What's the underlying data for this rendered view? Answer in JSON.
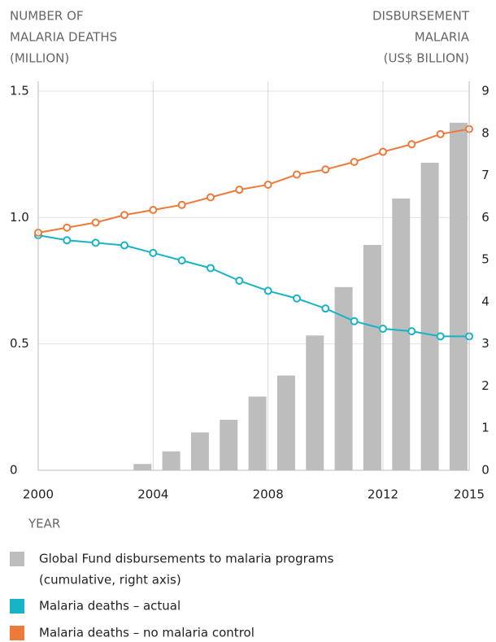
{
  "chart_data": {
    "type": "combo",
    "y_label": [
      "NUMBER OF",
      "MALARIA DEATHS",
      "(MILLION)"
    ],
    "y2_label": [
      "DISBURSEMENT",
      "MALARIA",
      "(US$ BILLION)"
    ],
    "x_label": "YEAR",
    "xlim": [
      2000,
      2015
    ],
    "xticks": [
      2000,
      2004,
      2008,
      2012,
      2015
    ],
    "ylim": [
      0,
      1.5
    ],
    "yticks": [
      0,
      0.5,
      {
        "value": 1,
        "label": "1.0"
      },
      1.5
    ],
    "y2lim": [
      0,
      9
    ],
    "y2ticks": [
      0,
      1,
      2,
      3,
      4,
      5,
      6,
      7,
      8,
      9
    ],
    "grid": true,
    "series": [
      {
        "name": [
          "Global Fund disbursements to malaria programs",
          "(cumulative, right axis)"
        ],
        "type": "bar",
        "axis": "y2",
        "color": "#bdbdbd",
        "x": [
          2004,
          2005,
          2006,
          2007,
          2008,
          2009,
          2010,
          2011,
          2012,
          2013,
          2014,
          2015
        ],
        "values": [
          0.15,
          0.45,
          0.9,
          1.2,
          1.75,
          2.25,
          3.2,
          4.35,
          5.35,
          6.45,
          7.3,
          8.25
        ]
      },
      {
        "name": [
          "Malaria deaths – actual"
        ],
        "type": "line",
        "color": "#17b3c7",
        "x": [
          2000,
          2001,
          2002,
          2003,
          2004,
          2005,
          2006,
          2007,
          2008,
          2009,
          2010,
          2011,
          2012,
          2013,
          2014,
          2015
        ],
        "values": [
          0.93,
          0.91,
          0.9,
          0.89,
          0.86,
          0.83,
          0.8,
          0.75,
          0.71,
          0.68,
          0.64,
          0.59,
          0.56,
          0.55,
          0.53,
          0.53
        ]
      },
      {
        "name": [
          "Malaria deaths – no malaria control"
        ],
        "type": "line",
        "color": "#ee7a3a",
        "x": [
          2000,
          2001,
          2002,
          2003,
          2004,
          2005,
          2006,
          2007,
          2008,
          2009,
          2010,
          2011,
          2012,
          2013,
          2014,
          2015
        ],
        "values": [
          0.94,
          0.96,
          0.98,
          1.01,
          1.03,
          1.05,
          1.08,
          1.11,
          1.13,
          1.17,
          1.19,
          1.22,
          1.26,
          1.29,
          1.33,
          1.35
        ]
      }
    ]
  }
}
